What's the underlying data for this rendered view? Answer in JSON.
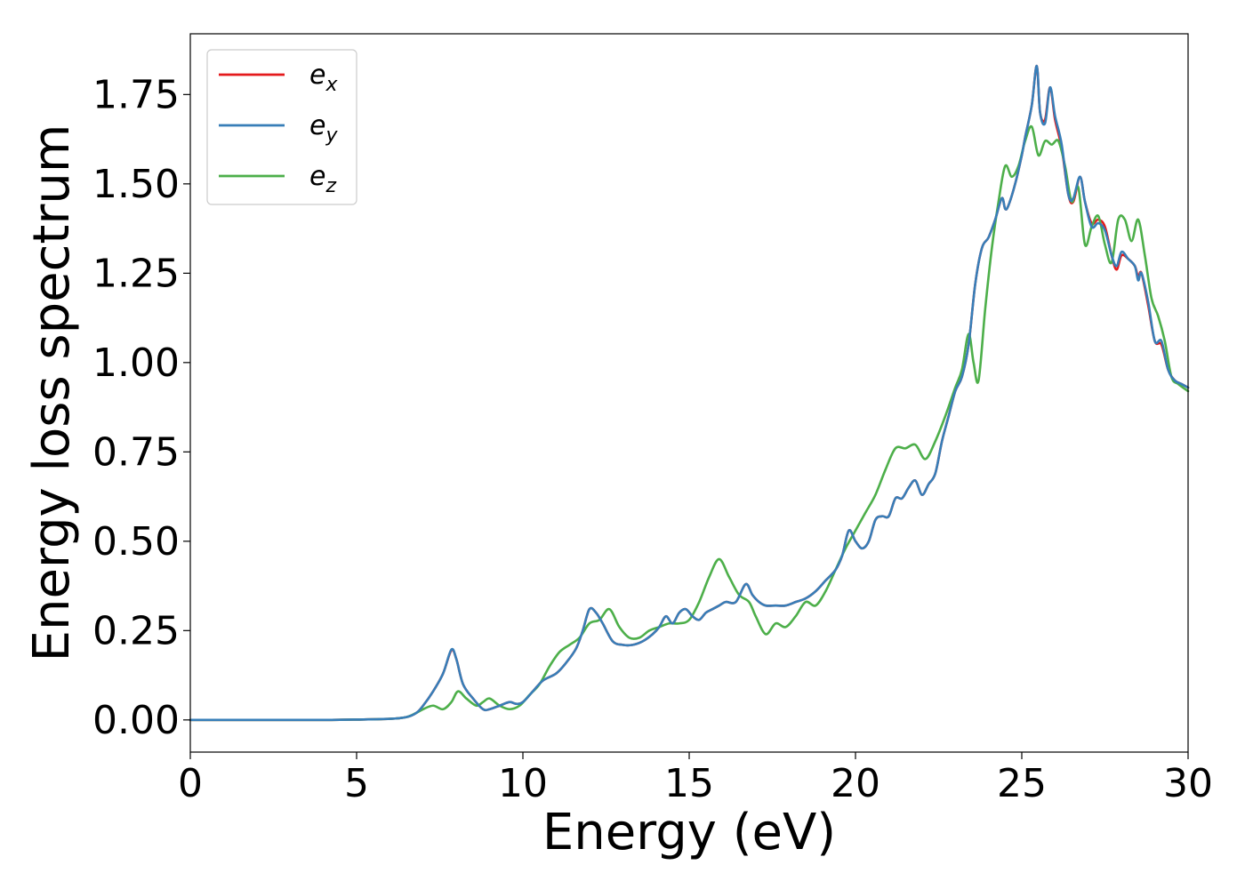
{
  "chart_data": {
    "type": "line",
    "title": "",
    "xlabel": "Energy (eV)",
    "ylabel": "Energy loss spectrum",
    "xlim": [
      0,
      30
    ],
    "ylim": [
      -0.09,
      1.92
    ],
    "xticks": [
      0,
      5,
      10,
      15,
      20,
      25,
      30
    ],
    "yticks": [
      0.0,
      0.25,
      0.5,
      0.75,
      1.0,
      1.25,
      1.5,
      1.75
    ],
    "xtick_labels": [
      "0",
      "5",
      "10",
      "15",
      "20",
      "25",
      "30"
    ],
    "ytick_labels": [
      "0.00",
      "0.25",
      "0.50",
      "0.75",
      "1.00",
      "1.25",
      "1.50",
      "1.75"
    ],
    "grid": false,
    "legend_position": "top-left",
    "series": [
      {
        "name": "e_x",
        "legend_base": "e",
        "legend_sub": "x",
        "color": "#e41a1c",
        "x": [
          0,
          2,
          4,
          5,
          6,
          6.5,
          6.8,
          7.0,
          7.3,
          7.6,
          7.85,
          8.0,
          8.2,
          8.5,
          8.8,
          9.0,
          9.3,
          9.6,
          9.8,
          10.0,
          10.3,
          10.6,
          11.0,
          11.3,
          11.6,
          11.8,
          12.0,
          12.2,
          12.4,
          12.7,
          13.0,
          13.3,
          13.6,
          13.9,
          14.1,
          14.3,
          14.5,
          14.7,
          14.9,
          15.1,
          15.3,
          15.5,
          15.7,
          15.9,
          16.1,
          16.4,
          16.7,
          16.9,
          17.1,
          17.3,
          17.6,
          17.9,
          18.2,
          18.5,
          18.8,
          19.1,
          19.4,
          19.6,
          19.8,
          20.0,
          20.2,
          20.4,
          20.6,
          20.8,
          21.0,
          21.2,
          21.4,
          21.6,
          21.8,
          22.0,
          22.2,
          22.4,
          22.6,
          22.8,
          23.0,
          23.2,
          23.4,
          23.6,
          23.8,
          24.0,
          24.2,
          24.4,
          24.5,
          24.6,
          24.8,
          25.0,
          25.1,
          25.3,
          25.45,
          25.55,
          25.7,
          25.85,
          26.0,
          26.2,
          26.4,
          26.55,
          26.75,
          26.9,
          27.1,
          27.3,
          27.5,
          27.7,
          27.85,
          28.0,
          28.2,
          28.4,
          28.5,
          28.6,
          28.8,
          29.0,
          29.2,
          29.4,
          29.6,
          29.8,
          30.0
        ],
        "values": [
          0.0,
          0.0,
          0.0,
          0.001,
          0.003,
          0.008,
          0.02,
          0.04,
          0.08,
          0.13,
          0.195,
          0.17,
          0.1,
          0.06,
          0.03,
          0.03,
          0.04,
          0.05,
          0.045,
          0.05,
          0.08,
          0.11,
          0.13,
          0.16,
          0.2,
          0.25,
          0.31,
          0.3,
          0.27,
          0.22,
          0.21,
          0.21,
          0.22,
          0.24,
          0.26,
          0.29,
          0.27,
          0.3,
          0.31,
          0.29,
          0.28,
          0.3,
          0.31,
          0.32,
          0.33,
          0.33,
          0.38,
          0.35,
          0.33,
          0.32,
          0.32,
          0.32,
          0.33,
          0.34,
          0.36,
          0.39,
          0.42,
          0.46,
          0.53,
          0.5,
          0.48,
          0.5,
          0.56,
          0.57,
          0.57,
          0.62,
          0.62,
          0.65,
          0.67,
          0.63,
          0.66,
          0.69,
          0.78,
          0.85,
          0.92,
          0.96,
          1.05,
          1.22,
          1.32,
          1.35,
          1.4,
          1.46,
          1.43,
          1.44,
          1.5,
          1.58,
          1.63,
          1.72,
          1.83,
          1.7,
          1.68,
          1.77,
          1.68,
          1.6,
          1.47,
          1.45,
          1.52,
          1.45,
          1.39,
          1.4,
          1.38,
          1.3,
          1.26,
          1.3,
          1.29,
          1.27,
          1.24,
          1.25,
          1.16,
          1.06,
          1.05,
          0.98,
          0.95,
          0.94,
          0.93
        ]
      },
      {
        "name": "e_y",
        "legend_base": "e",
        "legend_sub": "y",
        "color": "#377eb8",
        "x": [
          0,
          2,
          4,
          5,
          6,
          6.5,
          6.8,
          7.0,
          7.3,
          7.6,
          7.85,
          8.0,
          8.2,
          8.5,
          8.8,
          9.0,
          9.3,
          9.6,
          9.8,
          10.0,
          10.3,
          10.6,
          11.0,
          11.3,
          11.6,
          11.8,
          12.0,
          12.2,
          12.4,
          12.7,
          13.0,
          13.3,
          13.6,
          13.9,
          14.1,
          14.3,
          14.5,
          14.7,
          14.9,
          15.1,
          15.3,
          15.5,
          15.7,
          15.9,
          16.1,
          16.4,
          16.7,
          16.9,
          17.1,
          17.3,
          17.6,
          17.9,
          18.2,
          18.5,
          18.8,
          19.1,
          19.4,
          19.6,
          19.8,
          20.0,
          20.2,
          20.4,
          20.6,
          20.8,
          21.0,
          21.2,
          21.4,
          21.6,
          21.8,
          22.0,
          22.2,
          22.4,
          22.6,
          22.8,
          23.0,
          23.2,
          23.4,
          23.6,
          23.8,
          24.0,
          24.2,
          24.4,
          24.5,
          24.6,
          24.8,
          25.0,
          25.1,
          25.3,
          25.45,
          25.55,
          25.7,
          25.85,
          26.0,
          26.2,
          26.4,
          26.55,
          26.75,
          26.9,
          27.1,
          27.3,
          27.5,
          27.7,
          27.85,
          28.0,
          28.2,
          28.4,
          28.5,
          28.6,
          28.8,
          29.0,
          29.2,
          29.4,
          29.6,
          29.8,
          30.0
        ],
        "values": [
          0.0,
          0.0,
          0.0,
          0.001,
          0.003,
          0.008,
          0.02,
          0.04,
          0.08,
          0.13,
          0.197,
          0.17,
          0.1,
          0.06,
          0.03,
          0.03,
          0.04,
          0.05,
          0.045,
          0.05,
          0.08,
          0.11,
          0.13,
          0.16,
          0.2,
          0.25,
          0.31,
          0.3,
          0.27,
          0.22,
          0.21,
          0.21,
          0.22,
          0.24,
          0.26,
          0.29,
          0.27,
          0.3,
          0.31,
          0.29,
          0.28,
          0.3,
          0.31,
          0.32,
          0.33,
          0.33,
          0.38,
          0.35,
          0.33,
          0.32,
          0.32,
          0.32,
          0.33,
          0.34,
          0.36,
          0.39,
          0.42,
          0.46,
          0.53,
          0.5,
          0.48,
          0.5,
          0.56,
          0.57,
          0.57,
          0.62,
          0.62,
          0.65,
          0.67,
          0.63,
          0.66,
          0.69,
          0.78,
          0.85,
          0.92,
          0.96,
          1.05,
          1.22,
          1.32,
          1.35,
          1.4,
          1.46,
          1.43,
          1.44,
          1.5,
          1.58,
          1.63,
          1.72,
          1.83,
          1.7,
          1.67,
          1.77,
          1.69,
          1.61,
          1.47,
          1.46,
          1.52,
          1.45,
          1.38,
          1.39,
          1.37,
          1.3,
          1.27,
          1.31,
          1.29,
          1.27,
          1.23,
          1.25,
          1.17,
          1.06,
          1.06,
          0.98,
          0.95,
          0.94,
          0.93
        ]
      },
      {
        "name": "e_z",
        "legend_base": "e",
        "legend_sub": "z",
        "color": "#4daf4a",
        "x": [
          0,
          2,
          4,
          5,
          6,
          6.5,
          6.8,
          7.0,
          7.3,
          7.6,
          7.85,
          8.05,
          8.3,
          8.6,
          8.8,
          9.0,
          9.3,
          9.6,
          9.9,
          10.2,
          10.5,
          10.8,
          11.1,
          11.4,
          11.7,
          12.0,
          12.3,
          12.6,
          12.9,
          13.2,
          13.5,
          13.8,
          14.1,
          14.4,
          14.7,
          15.0,
          15.3,
          15.6,
          15.9,
          16.2,
          16.5,
          16.8,
          17.0,
          17.3,
          17.6,
          17.9,
          18.2,
          18.5,
          18.8,
          19.1,
          19.4,
          19.7,
          20.0,
          20.3,
          20.6,
          20.9,
          21.2,
          21.5,
          21.8,
          22.1,
          22.4,
          22.7,
          23.0,
          23.2,
          23.4,
          23.55,
          23.7,
          23.9,
          24.1,
          24.3,
          24.5,
          24.7,
          24.9,
          25.1,
          25.3,
          25.5,
          25.7,
          25.9,
          26.1,
          26.3,
          26.5,
          26.7,
          26.9,
          27.1,
          27.3,
          27.5,
          27.7,
          27.9,
          28.1,
          28.3,
          28.5,
          28.7,
          28.9,
          29.1,
          29.3,
          29.5,
          29.7,
          30.0
        ],
        "values": [
          0.0,
          0.0,
          0.0,
          0.001,
          0.003,
          0.008,
          0.02,
          0.03,
          0.04,
          0.03,
          0.05,
          0.08,
          0.06,
          0.04,
          0.05,
          0.06,
          0.04,
          0.03,
          0.04,
          0.07,
          0.1,
          0.15,
          0.19,
          0.21,
          0.23,
          0.27,
          0.28,
          0.31,
          0.26,
          0.23,
          0.23,
          0.25,
          0.26,
          0.27,
          0.27,
          0.28,
          0.33,
          0.4,
          0.45,
          0.4,
          0.35,
          0.33,
          0.29,
          0.24,
          0.27,
          0.26,
          0.29,
          0.33,
          0.32,
          0.36,
          0.42,
          0.48,
          0.53,
          0.58,
          0.63,
          0.7,
          0.76,
          0.76,
          0.77,
          0.73,
          0.78,
          0.85,
          0.93,
          0.98,
          1.08,
          1.0,
          0.95,
          1.15,
          1.32,
          1.45,
          1.55,
          1.52,
          1.55,
          1.62,
          1.66,
          1.58,
          1.62,
          1.61,
          1.62,
          1.55,
          1.45,
          1.49,
          1.33,
          1.38,
          1.41,
          1.33,
          1.28,
          1.4,
          1.4,
          1.34,
          1.4,
          1.3,
          1.18,
          1.13,
          1.06,
          0.96,
          0.94,
          0.92
        ]
      }
    ]
  }
}
